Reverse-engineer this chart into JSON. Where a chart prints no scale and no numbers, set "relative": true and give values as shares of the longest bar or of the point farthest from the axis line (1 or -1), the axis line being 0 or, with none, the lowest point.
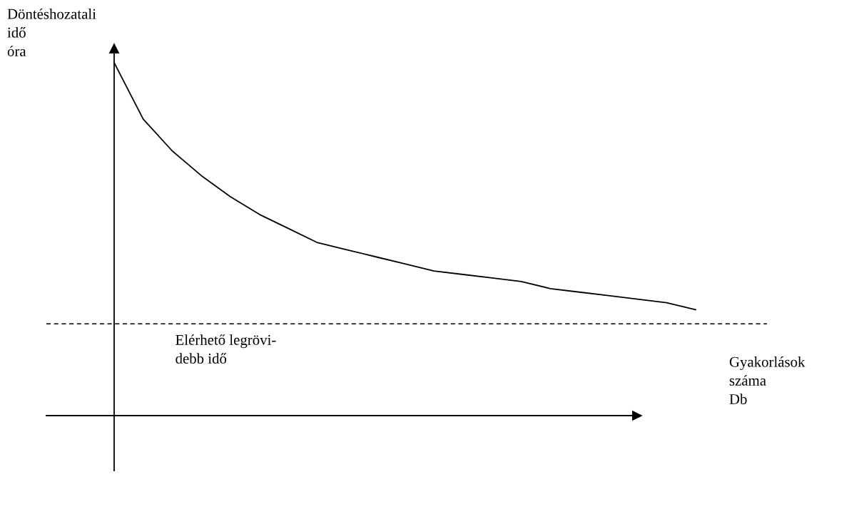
{
  "chart_data": {
    "type": "line",
    "relative": true,
    "xlabel": "Gyakorlások\nszáma\nDb",
    "ylabel": "Döntéshozatali\nidő\nóra",
    "categories": [
      null,
      null,
      null,
      null,
      null,
      null,
      null,
      null,
      null,
      null,
      null,
      null,
      null,
      null,
      null,
      null,
      null,
      null,
      null,
      null,
      null
    ],
    "series": [
      {
        "color": "#000000",
        "values": [
          1.0,
          0.84,
          0.75,
          0.68,
          0.62,
          0.57,
          0.53,
          0.49,
          0.47,
          0.45,
          0.43,
          0.41,
          0.4,
          0.39,
          0.38,
          0.36,
          0.35,
          0.34,
          0.33,
          0.32,
          0.3
        ]
      }
    ],
    "ref_lines": [
      {
        "axis": "y",
        "value": 0.26,
        "label": "Elérhető legrövi-\ndebb idő",
        "color": "#000000",
        "line_style": "dashed"
      }
    ]
  }
}
